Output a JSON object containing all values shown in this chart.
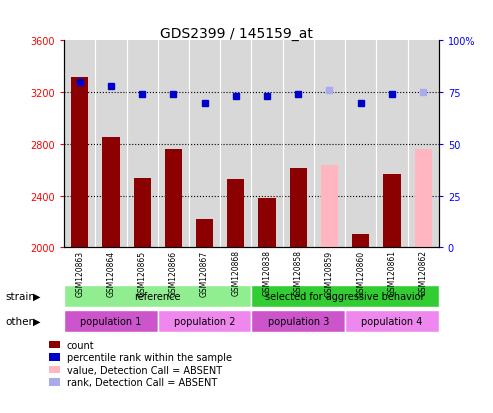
{
  "title": "GDS2399 / 145159_at",
  "samples": [
    "GSM120863",
    "GSM120864",
    "GSM120865",
    "GSM120866",
    "GSM120867",
    "GSM120868",
    "GSM120838",
    "GSM120858",
    "GSM120859",
    "GSM120860",
    "GSM120861",
    "GSM120862"
  ],
  "bar_values": [
    3320,
    2850,
    2540,
    2760,
    2220,
    2530,
    2380,
    2610,
    null,
    2100,
    2570,
    null
  ],
  "bar_absent_values": [
    null,
    null,
    null,
    null,
    null,
    null,
    null,
    null,
    2640,
    null,
    null,
    2760
  ],
  "rank_values": [
    80,
    78,
    74,
    74,
    70,
    73,
    73,
    74,
    76,
    70,
    74,
    75
  ],
  "rank_absent_values": [
    null,
    null,
    null,
    null,
    null,
    null,
    null,
    null,
    76,
    null,
    null,
    75
  ],
  "ylim_left": [
    2000,
    3600
  ],
  "ylim_right": [
    0,
    100
  ],
  "yticks_left": [
    2000,
    2400,
    2800,
    3200,
    3600
  ],
  "yticks_right": [
    0,
    25,
    50,
    75,
    100
  ],
  "bar_color": "#8B0000",
  "bar_absent_color": "#FFB6C1",
  "rank_color": "#0000CD",
  "rank_absent_color": "#AAAAEE",
  "grid_color": "#000000",
  "strain_groups": [
    {
      "label": "reference",
      "start": 0,
      "end": 6,
      "color": "#90EE90"
    },
    {
      "label": "selected for aggressive behavior",
      "start": 6,
      "end": 12,
      "color": "#32CD32"
    }
  ],
  "other_groups": [
    {
      "label": "population 1",
      "start": 0,
      "end": 3,
      "color": "#CC55CC"
    },
    {
      "label": "population 2",
      "start": 3,
      "end": 6,
      "color": "#EE88EE"
    },
    {
      "label": "population 3",
      "start": 6,
      "end": 9,
      "color": "#CC55CC"
    },
    {
      "label": "population 4",
      "start": 9,
      "end": 12,
      "color": "#EE88EE"
    }
  ],
  "legend_items": [
    {
      "label": "count",
      "color": "#8B0000"
    },
    {
      "label": "percentile rank within the sample",
      "color": "#0000CD"
    },
    {
      "label": "value, Detection Call = ABSENT",
      "color": "#FFB6C1"
    },
    {
      "label": "rank, Detection Call = ABSENT",
      "color": "#AAAAEE"
    }
  ]
}
